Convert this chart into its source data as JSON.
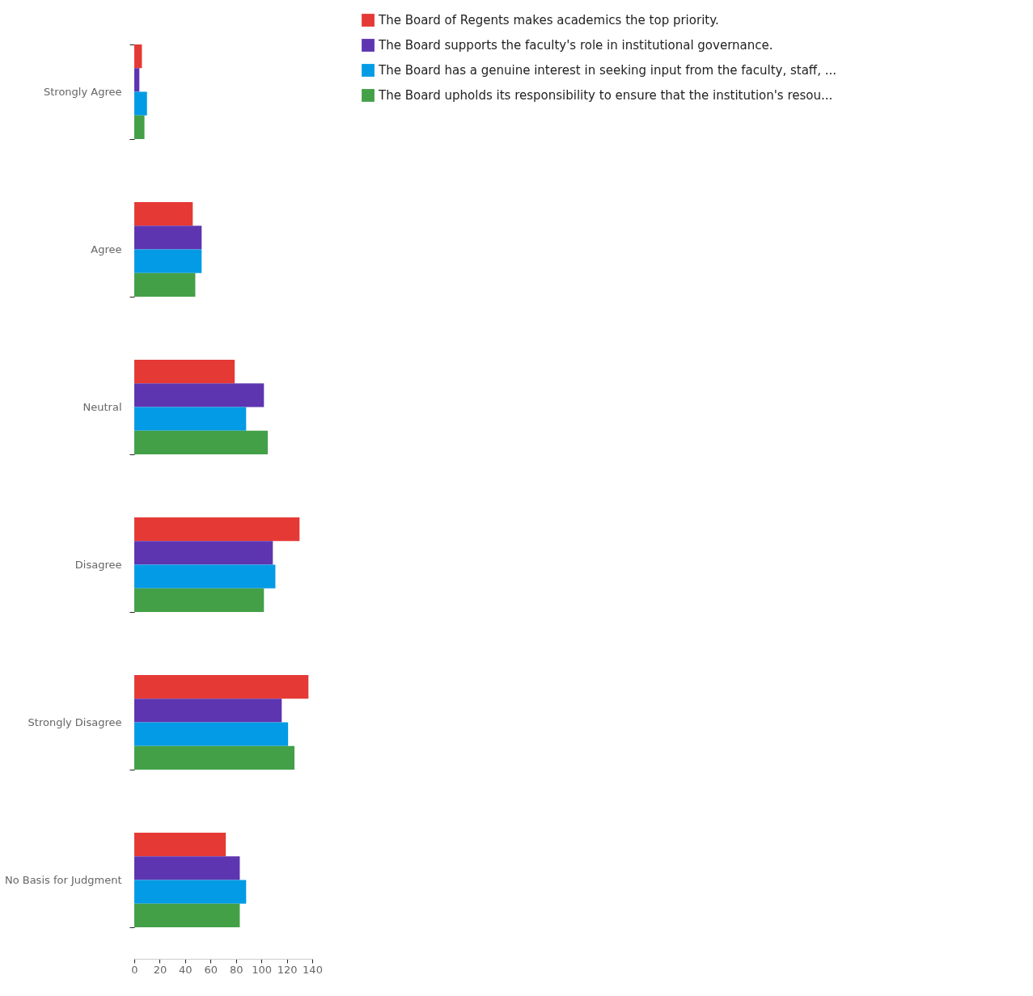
{
  "chart_data": {
    "type": "bar",
    "orientation": "horizontal",
    "categories": [
      "Strongly Agree",
      "Agree",
      "Neutral",
      "Disagree",
      "Strongly Disagree",
      "No Basis for Judgment"
    ],
    "series": [
      {
        "name": "The Board of Regents makes academics the top priority.",
        "color": "#e53935",
        "values": [
          6,
          46,
          79,
          130,
          137,
          72
        ]
      },
      {
        "name": "The Board supports the faculty's role in institutional governance.",
        "color": "#5e35b1",
        "values": [
          4,
          53,
          102,
          109,
          116,
          83
        ]
      },
      {
        "name": "The Board has a genuine interest in seeking input from the faculty, staff, ...",
        "color": "#039be5",
        "values": [
          10,
          53,
          88,
          111,
          121,
          88
        ]
      },
      {
        "name": "The Board upholds its responsibility to ensure that the institution's resou...",
        "color": "#43a047",
        "values": [
          8,
          48,
          105,
          102,
          126,
          83
        ]
      }
    ],
    "xlim": [
      0,
      140
    ],
    "xticks": [
      0,
      20,
      40,
      60,
      80,
      100,
      120,
      140
    ],
    "grid": false,
    "legend": "right"
  }
}
